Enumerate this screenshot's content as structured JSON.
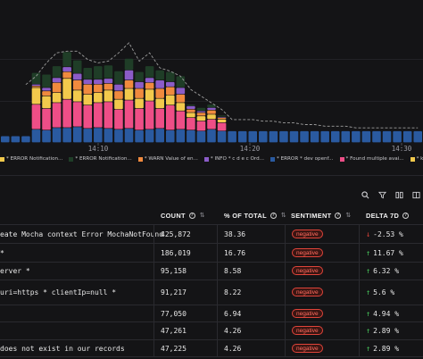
{
  "chart": {
    "tick_labels": [
      "14:10",
      "14:20",
      "14:30"
    ],
    "colors": {
      "navy": "#2a5aa0",
      "pink": "#ee4e87",
      "yellow": "#f2c94c",
      "orange": "#f08a3e",
      "purple": "#8b5cc8",
      "darkgreen": "#1f3d27",
      "gridline": "#2b2b30",
      "dashline": "#9e9e9e"
    }
  },
  "chart_data": {
    "type": "bar",
    "stack_order": [
      "navy",
      "pink",
      "yellow",
      "orange",
      "purple",
      "darkgreen"
    ],
    "bars": [
      [
        8,
        0,
        0,
        0,
        0,
        0
      ],
      [
        8,
        0,
        0,
        0,
        0,
        0
      ],
      [
        8,
        0,
        0,
        0,
        0,
        0
      ],
      [
        16,
        30,
        20,
        2,
        2,
        14
      ],
      [
        15,
        26,
        15,
        6,
        4,
        16
      ],
      [
        18,
        30,
        12,
        12,
        6,
        14
      ],
      [
        18,
        34,
        25,
        8,
        6,
        18
      ],
      [
        19,
        30,
        14,
        12,
        8,
        16
      ],
      [
        17,
        28,
        13,
        12,
        6,
        14
      ],
      [
        18,
        30,
        12,
        10,
        6,
        16
      ],
      [
        17,
        32,
        14,
        8,
        6,
        16
      ],
      [
        16,
        24,
        12,
        10,
        8,
        16
      ],
      [
        17,
        34,
        14,
        10,
        12,
        14
      ],
      [
        15,
        26,
        12,
        12,
        8,
        12
      ],
      [
        16,
        34,
        14,
        8,
        6,
        14
      ],
      [
        17,
        24,
        12,
        12,
        10,
        12
      ],
      [
        15,
        30,
        12,
        10,
        6,
        12
      ],
      [
        16,
        22,
        10,
        10,
        8,
        14
      ],
      [
        15,
        15,
        6,
        4,
        4,
        2
      ],
      [
        14,
        12,
        6,
        4,
        2,
        4
      ],
      [
        16,
        12,
        6,
        5,
        3,
        4
      ],
      [
        14,
        10,
        4,
        2,
        1,
        2
      ],
      [
        14,
        0,
        0,
        0,
        0,
        0
      ],
      [
        14,
        0,
        0,
        0,
        0,
        0
      ],
      [
        14,
        0,
        0,
        0,
        0,
        0
      ],
      [
        14,
        0,
        0,
        0,
        0,
        0
      ],
      [
        14,
        0,
        0,
        0,
        0,
        0
      ],
      [
        14,
        0,
        0,
        0,
        0,
        0
      ],
      [
        14,
        0,
        0,
        0,
        0,
        0
      ],
      [
        14,
        0,
        0,
        0,
        0,
        0
      ],
      [
        14,
        0,
        0,
        0,
        0,
        0
      ],
      [
        14,
        0,
        0,
        0,
        0,
        0
      ],
      [
        14,
        0,
        0,
        0,
        0,
        0
      ],
      [
        14,
        0,
        0,
        0,
        0,
        0
      ],
      [
        14,
        0,
        0,
        0,
        0,
        0
      ],
      [
        14,
        0,
        0,
        0,
        0,
        0
      ],
      [
        14,
        0,
        0,
        0,
        0,
        0
      ],
      [
        14,
        0,
        0,
        0,
        0,
        0
      ],
      [
        14,
        0,
        0,
        0,
        0,
        0
      ],
      [
        14,
        0,
        0,
        0,
        0,
        0
      ],
      [
        14,
        0,
        0,
        0,
        0,
        0
      ]
    ],
    "trend": [
      null,
      null,
      70,
      80,
      96,
      108,
      110,
      110,
      100,
      96,
      98,
      108,
      120,
      98,
      108,
      90,
      86,
      80,
      64,
      56,
      48,
      40,
      28,
      28,
      28,
      26,
      26,
      24,
      24,
      22,
      22,
      20,
      20,
      20,
      18,
      18,
      18,
      18,
      18,
      18,
      18
    ],
    "ylim": [
      0,
      150
    ]
  },
  "legend": [
    {
      "color": "#f2c94c",
      "label": "* ERROR Notification..."
    },
    {
      "color": "#1f3d27",
      "label": "* ERROR Notification..."
    },
    {
      "color": "#f08a3e",
      "label": "* WARN Value of en..."
    },
    {
      "color": "#8b5cc8",
      "label": "* INFO * c d e c Ord..."
    },
    {
      "color": "#2a5aa0",
      "label": "* ERROR * dev openf..."
    },
    {
      "color": "#ee4e87",
      "label": "* Found multiple avai..."
    },
    {
      "color": "#f2c94c",
      "label": "* k*s k* Failed to wa..."
    }
  ],
  "toolbar": {
    "icons": [
      "search-icon",
      "filter-icon",
      "columns-icon",
      "panel-icon"
    ]
  },
  "table": {
    "headers": {
      "count": "COUNT",
      "pct": "% OF TOTAL",
      "sentiment": "SENTIMENT",
      "delta": "DELTA 7D"
    },
    "rows": [
      {
        "pattern": "eate Mocha context Error MochaNotFound",
        "pattern2": "",
        "count": "425,872",
        "pct": "38.36",
        "sentiment": "negative",
        "dir": "down",
        "delta": "-2.53 %"
      },
      {
        "pattern": "*",
        "pattern2": "",
        "count": "186,019",
        "pct": "16.76",
        "sentiment": "negative",
        "dir": "up",
        "delta": "11.67 %"
      },
      {
        "pattern": "erver *",
        "pattern2": "",
        "count": "95,158",
        "pct": "8.58",
        "sentiment": "negative",
        "dir": "up",
        "delta": "6.32 %"
      },
      {
        "pattern": "uri=https * clientIp=null *",
        "pattern2": "",
        "count": "91,217",
        "pct": "8.22",
        "sentiment": "negative",
        "dir": "up",
        "delta": "5.6 %"
      },
      {
        "pattern": "",
        "pattern2": "",
        "count": "77,050",
        "pct": "6.94",
        "sentiment": "negative",
        "dir": "up",
        "delta": "4.94 %"
      },
      {
        "pattern": "",
        "pattern2": "",
        "count": "47,261",
        "pct": "4.26",
        "sentiment": "negative",
        "dir": "up",
        "delta": "2.89 %"
      },
      {
        "pattern": "does not exist in our records",
        "pattern2": "",
        "count": "47,225",
        "pct": "4.26",
        "sentiment": "negative",
        "dir": "up",
        "delta": "2.89 %"
      }
    ]
  }
}
